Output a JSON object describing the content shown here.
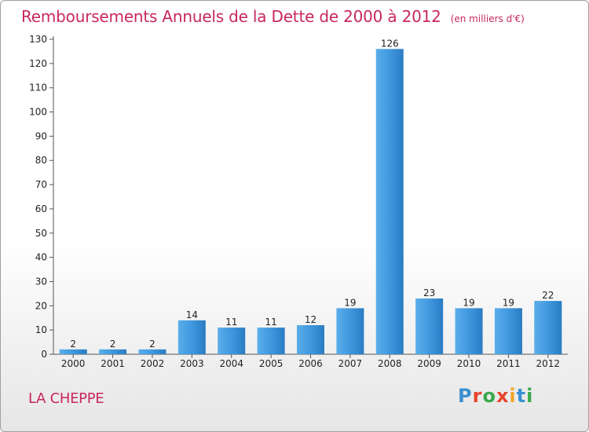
{
  "title": "Remboursements Annuels de la Dette de 2000 à 2012",
  "unit_note": "(en milliers d'€)",
  "commune": "LA CHEPPE",
  "logo": {
    "text": "Proxiti",
    "letter_colors": [
      "#3a8fd0",
      "#e8442a",
      "#3aa84a",
      "#e8442a",
      "#f2a52a",
      "#3a8fd0",
      "#3aa84a"
    ]
  },
  "colors": {
    "bar": "#3d95dc",
    "bar_light": "#5aaeea",
    "bar_dark": "#2a7cc2",
    "title": "#c8285a"
  },
  "chart_data": {
    "type": "bar",
    "categories": [
      "2000",
      "2001",
      "2002",
      "2003",
      "2004",
      "2005",
      "2006",
      "2007",
      "2008",
      "2009",
      "2010",
      "2011",
      "2012"
    ],
    "values": [
      2,
      2,
      2,
      14,
      11,
      11,
      12,
      19,
      126,
      23,
      19,
      19,
      22
    ],
    "ylim": [
      0,
      130
    ],
    "yticks": [
      0,
      10,
      20,
      30,
      40,
      50,
      60,
      70,
      80,
      90,
      100,
      110,
      120,
      130
    ],
    "grid": false,
    "data_labels": true
  }
}
